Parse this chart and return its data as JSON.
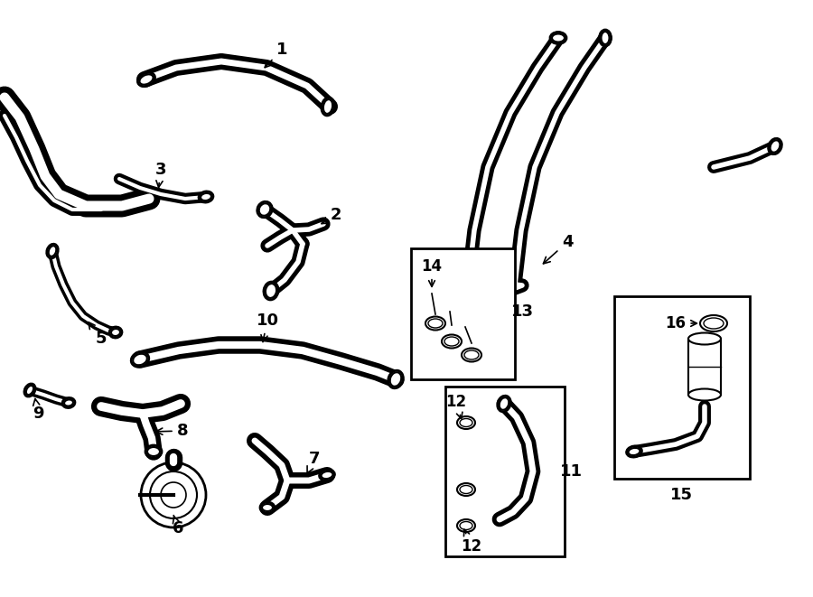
{
  "bg_color": "#ffffff",
  "fig_width": 9.0,
  "fig_height": 6.61
}
